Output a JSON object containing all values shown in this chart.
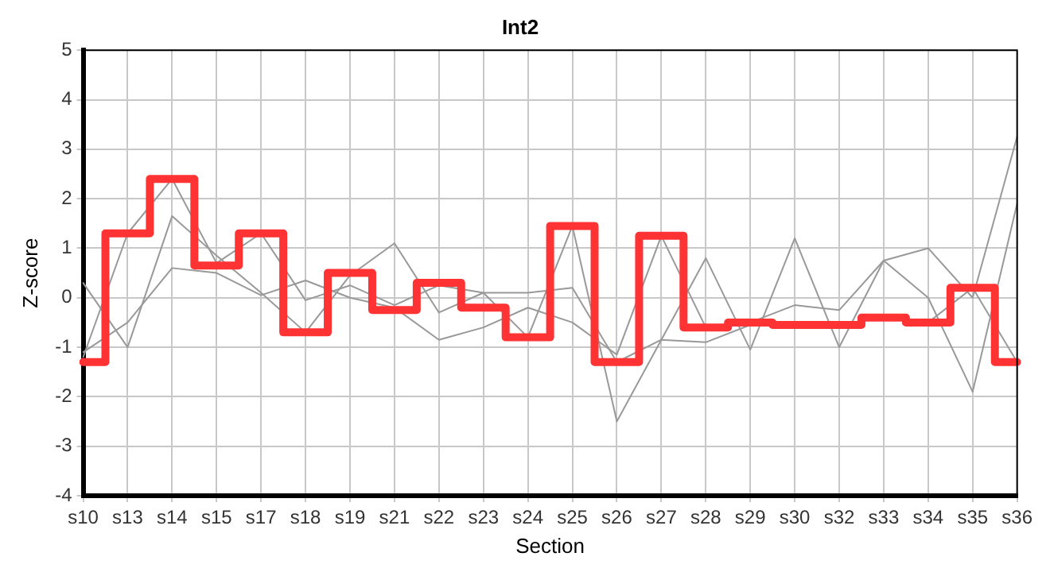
{
  "chart_data": {
    "type": "line",
    "title": "Int2",
    "xlabel": "Section",
    "ylabel": "Z-score",
    "categories": [
      "s10",
      "s13",
      "s14",
      "s15",
      "s17",
      "s18",
      "s19",
      "s21",
      "s22",
      "s23",
      "s24",
      "s25",
      "s26",
      "s27",
      "s28",
      "s29",
      "s30",
      "s32",
      "s33",
      "s34",
      "s35",
      "s36"
    ],
    "ylim": [
      -4,
      5
    ],
    "yticks": [
      -4,
      -3,
      -2,
      -1,
      0,
      1,
      2,
      3,
      4,
      5
    ],
    "grid": true,
    "legend": false,
    "marker": "none",
    "line_style": "solid",
    "series": [
      {
        "type": "line",
        "color": "#999999",
        "values": [
          0.3,
          -1.0,
          1.65,
          0.85,
          0.1,
          -0.7,
          0.45,
          1.1,
          -0.3,
          0.1,
          -0.8,
          1.45,
          -2.5,
          -0.85,
          0.8,
          -1.05,
          1.2,
          -1.0,
          0.75,
          0.0,
          -1.9,
          1.9
        ]
      },
      {
        "type": "line",
        "color": "#999999",
        "values": [
          -1.1,
          -0.5,
          0.6,
          0.5,
          0.05,
          0.35,
          0.0,
          -0.2,
          -0.85,
          -0.6,
          -0.2,
          -0.5,
          -1.15,
          1.25,
          -0.6,
          -0.5,
          -0.15,
          -0.25,
          0.75,
          1.0,
          0.0,
          3.25
        ]
      },
      {
        "type": "line",
        "color": "#999999",
        "values": [
          -1.2,
          1.3,
          2.4,
          0.7,
          1.3,
          -0.05,
          0.25,
          -0.15,
          0.25,
          0.1,
          0.1,
          0.2,
          -1.3,
          -0.85,
          -0.9,
          -0.55,
          -0.55,
          -0.55,
          -0.4,
          -0.5,
          0.2,
          -1.3
        ]
      },
      {
        "type": "step",
        "color": "#ff3333",
        "values": [
          -1.3,
          1.3,
          2.4,
          0.65,
          1.3,
          -0.7,
          0.5,
          -0.25,
          0.3,
          -0.2,
          -0.8,
          1.45,
          -1.3,
          1.25,
          -0.6,
          -0.5,
          -0.55,
          -0.55,
          -0.4,
          -0.5,
          0.2,
          -1.3
        ]
      }
    ]
  }
}
